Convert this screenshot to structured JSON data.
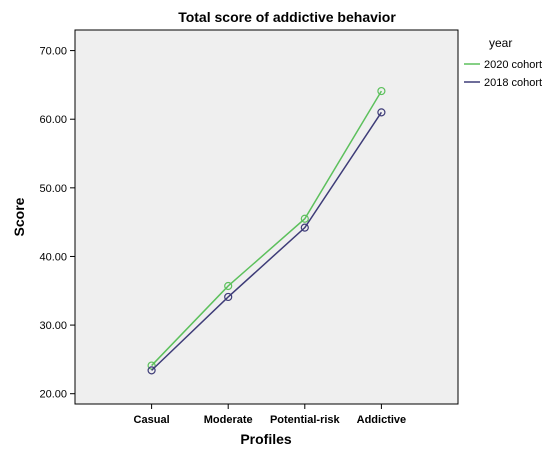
{
  "chart_data": {
    "type": "line",
    "title": "Total score of addictive behavior",
    "xlabel": "Profiles",
    "ylabel": "Score",
    "categories": [
      "Casual",
      "Moderate",
      "Potential-risk",
      "Addictive"
    ],
    "yticks": [
      "20.00",
      "30.00",
      "40.00",
      "50.00",
      "60.00",
      "70.00"
    ],
    "ylim": [
      18.5,
      73
    ],
    "grid": false,
    "legend": {
      "title": "year",
      "placement": "outside-right-top"
    },
    "series": [
      {
        "name": "2020 cohort",
        "color": "#5cc05c",
        "values": [
          24.1,
          35.7,
          45.5,
          64.1
        ]
      },
      {
        "name": "2018 cohort",
        "color": "#3e3c78",
        "values": [
          23.4,
          34.1,
          44.2,
          61.0
        ]
      }
    ]
  },
  "colors": {
    "plot_background": "#efefef",
    "plot_border": "#000000"
  }
}
